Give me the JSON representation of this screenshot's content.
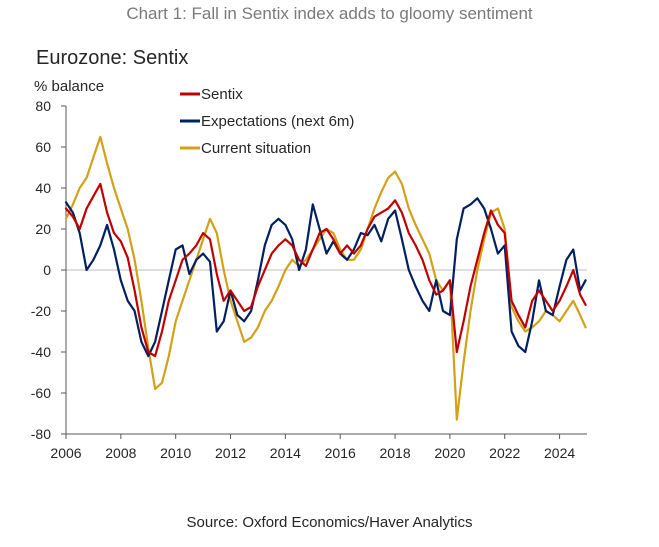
{
  "caption": "Chart 1: Fall in Sentix index adds to gloomy sentiment",
  "source": "Source: Oxford Economics/Haver Analytics",
  "chart_data": {
    "type": "line",
    "title": "Eurozone: Sentix",
    "ylabel": "% balance",
    "xlabel": "",
    "xlim": [
      2006,
      2025
    ],
    "ylim": [
      -80,
      80
    ],
    "yticks": [
      80,
      60,
      40,
      20,
      0,
      -20,
      -40,
      -60,
      -80
    ],
    "xticks": [
      2006,
      2008,
      2010,
      2012,
      2014,
      2016,
      2018,
      2020,
      2022,
      2024
    ],
    "legend_position": "top-center",
    "series": [
      {
        "name": "Sentix",
        "color": "#c00000",
        "x": [
          2006.0,
          2006.25,
          2006.5,
          2006.75,
          2007.0,
          2007.25,
          2007.5,
          2007.75,
          2008.0,
          2008.25,
          2008.5,
          2008.75,
          2009.0,
          2009.25,
          2009.5,
          2009.75,
          2010.0,
          2010.25,
          2010.5,
          2010.75,
          2011.0,
          2011.25,
          2011.5,
          2011.75,
          2012.0,
          2012.25,
          2012.5,
          2012.75,
          2013.0,
          2013.25,
          2013.5,
          2013.75,
          2014.0,
          2014.25,
          2014.5,
          2014.75,
          2015.0,
          2015.25,
          2015.5,
          2015.75,
          2016.0,
          2016.25,
          2016.5,
          2016.75,
          2017.0,
          2017.25,
          2017.5,
          2017.75,
          2018.0,
          2018.25,
          2018.5,
          2018.75,
          2019.0,
          2019.25,
          2019.5,
          2019.75,
          2020.0,
          2020.25,
          2020.5,
          2020.75,
          2021.0,
          2021.25,
          2021.5,
          2021.75,
          2022.0,
          2022.25,
          2022.5,
          2022.75,
          2023.0,
          2023.25,
          2023.5,
          2023.75,
          2024.0,
          2024.25,
          2024.5,
          2024.75,
          2024.95
        ],
        "y": [
          30,
          26,
          20,
          30,
          36,
          42,
          28,
          18,
          14,
          6,
          -10,
          -28,
          -40,
          -42,
          -30,
          -15,
          -5,
          5,
          8,
          12,
          18,
          15,
          -2,
          -15,
          -10,
          -15,
          -20,
          -18,
          -8,
          0,
          8,
          12,
          15,
          12,
          5,
          2,
          10,
          18,
          20,
          15,
          8,
          12,
          8,
          12,
          20,
          26,
          28,
          30,
          34,
          28,
          18,
          12,
          5,
          -5,
          -12,
          -10,
          -5,
          -40,
          -25,
          -8,
          5,
          18,
          29,
          22,
          18,
          -15,
          -22,
          -28,
          -15,
          -10,
          -15,
          -20,
          -15,
          -8,
          0,
          -12,
          -17
        ]
      },
      {
        "name": "Expectations (next 6m)",
        "color": "#002060",
        "x": [
          2006.0,
          2006.25,
          2006.5,
          2006.75,
          2007.0,
          2007.25,
          2007.5,
          2007.75,
          2008.0,
          2008.25,
          2008.5,
          2008.75,
          2009.0,
          2009.25,
          2009.5,
          2009.75,
          2010.0,
          2010.25,
          2010.5,
          2010.75,
          2011.0,
          2011.25,
          2011.5,
          2011.75,
          2012.0,
          2012.25,
          2012.5,
          2012.75,
          2013.0,
          2013.25,
          2013.5,
          2013.75,
          2014.0,
          2014.25,
          2014.5,
          2014.75,
          2015.0,
          2015.25,
          2015.5,
          2015.75,
          2016.0,
          2016.25,
          2016.5,
          2016.75,
          2017.0,
          2017.25,
          2017.5,
          2017.75,
          2018.0,
          2018.25,
          2018.5,
          2018.75,
          2019.0,
          2019.25,
          2019.5,
          2019.75,
          2020.0,
          2020.25,
          2020.5,
          2020.75,
          2021.0,
          2021.25,
          2021.5,
          2021.75,
          2022.0,
          2022.25,
          2022.5,
          2022.75,
          2023.0,
          2023.25,
          2023.5,
          2023.75,
          2024.0,
          2024.25,
          2024.5,
          2024.75,
          2024.95
        ],
        "y": [
          33,
          28,
          18,
          0,
          5,
          12,
          22,
          10,
          -5,
          -15,
          -20,
          -35,
          -42,
          -35,
          -20,
          -5,
          10,
          12,
          -2,
          5,
          8,
          4,
          -30,
          -25,
          -10,
          -22,
          -25,
          -20,
          -5,
          12,
          22,
          25,
          22,
          15,
          0,
          10,
          32,
          20,
          8,
          14,
          8,
          5,
          10,
          18,
          17,
          22,
          14,
          25,
          29,
          15,
          0,
          -8,
          -15,
          -20,
          -5,
          -20,
          -22,
          15,
          30,
          32,
          35,
          30,
          20,
          8,
          12,
          -30,
          -37,
          -40,
          -25,
          -5,
          -20,
          -22,
          -8,
          5,
          10,
          -10,
          -5
        ]
      },
      {
        "name": "Current situation",
        "color": "#d4a017",
        "x": [
          2006.0,
          2006.25,
          2006.5,
          2006.75,
          2007.0,
          2007.25,
          2007.5,
          2007.75,
          2008.0,
          2008.25,
          2008.5,
          2008.75,
          2009.0,
          2009.25,
          2009.5,
          2009.75,
          2010.0,
          2010.25,
          2010.5,
          2010.75,
          2011.0,
          2011.25,
          2011.5,
          2011.75,
          2012.0,
          2012.25,
          2012.5,
          2012.75,
          2013.0,
          2013.25,
          2013.5,
          2013.75,
          2014.0,
          2014.25,
          2014.5,
          2014.75,
          2015.0,
          2015.25,
          2015.5,
          2015.75,
          2016.0,
          2016.25,
          2016.5,
          2016.75,
          2017.0,
          2017.25,
          2017.5,
          2017.75,
          2018.0,
          2018.25,
          2018.5,
          2018.75,
          2019.0,
          2019.25,
          2019.5,
          2019.75,
          2020.0,
          2020.25,
          2020.5,
          2020.75,
          2021.0,
          2021.25,
          2021.5,
          2021.75,
          2022.0,
          2022.25,
          2022.5,
          2022.75,
          2023.0,
          2023.25,
          2023.5,
          2023.75,
          2024.0,
          2024.25,
          2024.5,
          2024.75,
          2024.95
        ],
        "y": [
          25,
          32,
          40,
          45,
          55,
          65,
          52,
          40,
          30,
          20,
          5,
          -15,
          -38,
          -58,
          -55,
          -42,
          -25,
          -15,
          -5,
          5,
          15,
          25,
          18,
          0,
          -15,
          -25,
          -35,
          -33,
          -28,
          -20,
          -15,
          -8,
          0,
          5,
          2,
          5,
          10,
          15,
          20,
          18,
          10,
          5,
          5,
          10,
          20,
          30,
          38,
          45,
          48,
          42,
          30,
          22,
          15,
          8,
          -5,
          -10,
          -5,
          -73,
          -45,
          -20,
          0,
          15,
          28,
          30,
          20,
          -18,
          -25,
          -30,
          -28,
          -25,
          -20,
          -22,
          -25,
          -20,
          -15,
          -22,
          -28
        ]
      }
    ]
  }
}
